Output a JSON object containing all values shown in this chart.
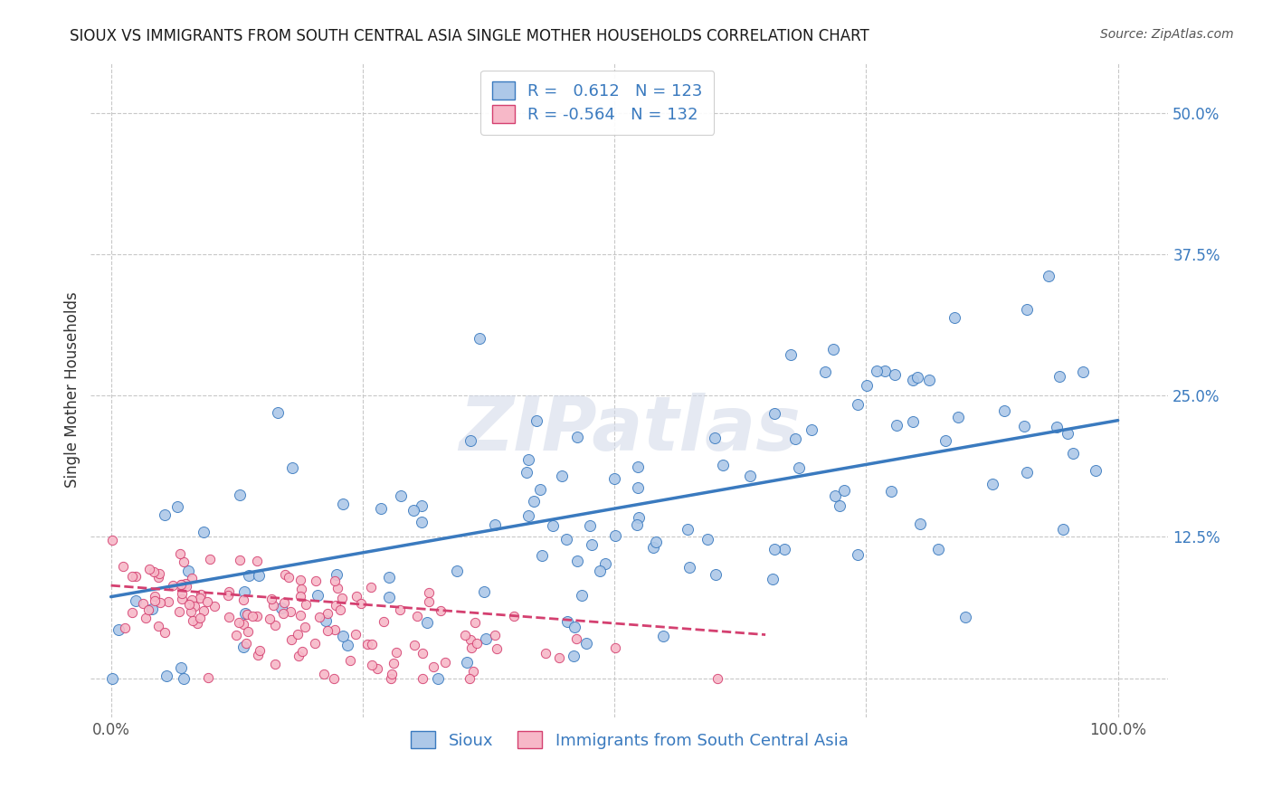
{
  "title": "SIOUX VS IMMIGRANTS FROM SOUTH CENTRAL ASIA SINGLE MOTHER HOUSEHOLDS CORRELATION CHART",
  "source": "Source: ZipAtlas.com",
  "ylabel": "Single Mother Households",
  "legend_labels": [
    "Sioux",
    "Immigrants from South Central Asia"
  ],
  "r_sioux": 0.612,
  "n_sioux": 123,
  "r_immigrants": -0.564,
  "n_immigrants": 132,
  "sioux_color": "#adc8e8",
  "sioux_line_color": "#3a7abf",
  "immigrants_color": "#f7b8c8",
  "immigrants_line_color": "#d44070",
  "background_color": "#ffffff",
  "grid_color": "#c8c8c8",
  "watermark": "ZIPatlas",
  "x_ticks": [
    0.0,
    0.25,
    0.5,
    0.75,
    1.0
  ],
  "y_ticks": [
    0.0,
    0.125,
    0.25,
    0.375,
    0.5
  ],
  "y_tick_labels": [
    "",
    "12.5%",
    "25.0%",
    "37.5%",
    "50.0%"
  ],
  "xlim": [
    -0.02,
    1.05
  ],
  "ylim": [
    -0.035,
    0.545
  ]
}
